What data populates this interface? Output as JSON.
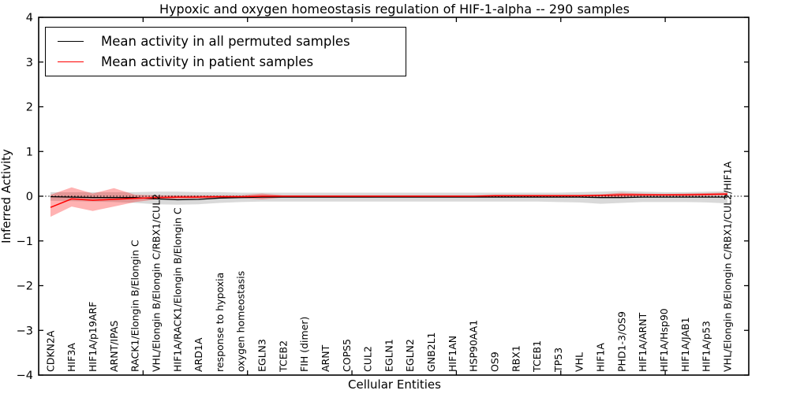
{
  "chart_data": {
    "type": "line",
    "title": "Hypoxic and oxygen homeostasis regulation of HIF-1-alpha -- 290 samples",
    "xlabel": "Cellular Entities",
    "ylabel": "Inferred Activity",
    "ylim": [
      -4,
      4
    ],
    "yticks": [
      4,
      3,
      2,
      1,
      0,
      -1,
      -2,
      -3,
      -4
    ],
    "ytick_labels": [
      "4",
      "3",
      "2",
      "1",
      "0",
      "−1",
      "−2",
      "−3",
      "−4"
    ],
    "xticks": [
      5,
      10,
      15,
      20,
      25,
      30
    ],
    "grid": false,
    "legend_position": "upper-left",
    "zero_line": {
      "style": "dotted",
      "color": "#000000",
      "y": 0
    },
    "categories": [
      "CDKN2A",
      "HIF3A",
      "HIF1A/p19ARF",
      "ARNT/IPAS",
      "RACK1/Elongin B/Elongin C",
      "VHL/Elongin B/Elongin C/RBX1/CUL2",
      "HIF1A/RACK1/Elongin B/Elongin C",
      "ARD1A",
      "response to hypoxia",
      "oxygen homeostasis",
      "EGLN3",
      "TCEB2",
      "FIH (dimer)",
      "ARNT",
      "COPS5",
      "CUL2",
      "EGLN1",
      "EGLN2",
      "GNB2L1",
      "HIF1AN",
      "HSP90AA1",
      "OS9",
      "RBX1",
      "TCEB1",
      "TP53",
      "VHL",
      "HIF1A",
      "PHD1-3/OS9",
      "HIF1A/ARNT",
      "HIF1A/Hsp90",
      "HIF1A/JAB1",
      "HIF1A/p53",
      "VHL/Elongin B/Elongin C/RBX1/CUL2/HIF1A"
    ],
    "series": [
      {
        "name": "Mean activity in all permuted samples",
        "color": "#000000",
        "values": [
          -0.01,
          -0.02,
          -0.03,
          -0.03,
          -0.03,
          -0.06,
          -0.08,
          -0.07,
          -0.04,
          -0.03,
          -0.02,
          -0.02,
          -0.02,
          -0.02,
          -0.02,
          -0.02,
          -0.02,
          -0.02,
          -0.02,
          -0.02,
          -0.02,
          -0.02,
          -0.02,
          -0.02,
          -0.02,
          -0.02,
          -0.03,
          -0.03,
          -0.02,
          -0.02,
          -0.02,
          -0.02,
          -0.02
        ]
      },
      {
        "name": "Mean activity in patient samples",
        "color": "#ff0000",
        "values": [
          -0.25,
          -0.06,
          -0.09,
          -0.07,
          -0.05,
          -0.03,
          -0.02,
          -0.02,
          -0.01,
          -0.01,
          0.0,
          0.0,
          0.0,
          0.0,
          0.0,
          0.0,
          0.0,
          0.0,
          0.0,
          0.0,
          0.0,
          0.01,
          0.01,
          0.01,
          0.01,
          0.01,
          0.02,
          0.03,
          0.03,
          0.03,
          0.03,
          0.04,
          0.05
        ]
      }
    ],
    "bands": [
      {
        "name": "permuted samples range",
        "color": "#d9d9d9",
        "opacity": 1,
        "upper": [
          0.09,
          0.09,
          0.09,
          0.09,
          0.09,
          0.1,
          0.1,
          0.09,
          0.09,
          0.08,
          0.08,
          0.08,
          0.08,
          0.08,
          0.08,
          0.08,
          0.08,
          0.08,
          0.08,
          0.08,
          0.08,
          0.08,
          0.08,
          0.08,
          0.08,
          0.09,
          0.1,
          0.12,
          0.1,
          0.09,
          0.09,
          0.1,
          0.11
        ],
        "lower": [
          -0.1,
          -0.11,
          -0.12,
          -0.13,
          -0.15,
          -0.18,
          -0.19,
          -0.18,
          -0.15,
          -0.13,
          -0.12,
          -0.12,
          -0.12,
          -0.12,
          -0.12,
          -0.12,
          -0.12,
          -0.12,
          -0.12,
          -0.12,
          -0.12,
          -0.12,
          -0.12,
          -0.12,
          -0.13,
          -0.14,
          -0.17,
          -0.15,
          -0.13,
          -0.13,
          -0.13,
          -0.14,
          -0.16
        ]
      },
      {
        "name": "patient samples range",
        "color": "#ff0000",
        "opacity": 0.3,
        "upper": [
          0.03,
          0.2,
          0.06,
          0.18,
          0.03,
          0.02,
          0.02,
          0.02,
          0.02,
          0.02,
          0.06,
          0.02,
          0.02,
          0.02,
          0.02,
          0.02,
          0.02,
          0.02,
          0.02,
          0.02,
          0.02,
          0.03,
          0.03,
          0.03,
          0.03,
          0.03,
          0.04,
          0.08,
          0.06,
          0.05,
          0.06,
          0.07,
          0.08
        ],
        "lower": [
          -0.46,
          -0.23,
          -0.33,
          -0.23,
          -0.13,
          -0.07,
          -0.06,
          -0.05,
          -0.04,
          -0.04,
          -0.07,
          -0.03,
          -0.03,
          -0.03,
          -0.03,
          -0.03,
          -0.02,
          -0.02,
          -0.02,
          -0.02,
          -0.02,
          -0.02,
          -0.02,
          -0.02,
          -0.02,
          -0.02,
          -0.01,
          -0.02,
          0.0,
          0.0,
          0.0,
          0.01,
          0.02
        ]
      }
    ]
  }
}
